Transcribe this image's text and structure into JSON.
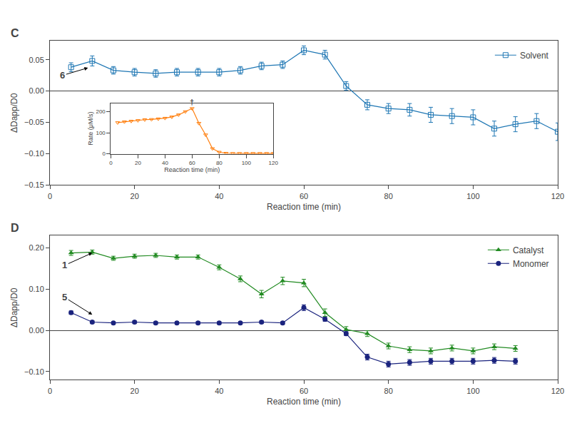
{
  "chart_data": [
    {
      "type": "line",
      "title": "C",
      "x_label": "Reaction time (min)",
      "y_label": "ΔDapp/D0",
      "xlim": [
        0,
        120
      ],
      "ylim": [
        -0.15,
        0.08
      ],
      "xticks": [
        0,
        20,
        40,
        60,
        80,
        100,
        120
      ],
      "yticks": [
        {
          "value": -0.15,
          "label": "−0.15"
        },
        {
          "value": -0.1,
          "label": "−0.10"
        },
        {
          "value": -0.05,
          "label": "−0.05"
        },
        {
          "value": 0.0,
          "label": "0.00"
        },
        {
          "value": 0.05,
          "label": "0.05"
        }
      ],
      "grid": false,
      "legend": "upper right",
      "x": [
        5,
        10,
        15,
        20,
        25,
        30,
        35,
        40,
        45,
        50,
        55,
        60,
        65,
        70,
        75,
        80,
        85,
        90,
        95,
        100,
        105,
        110,
        115,
        120
      ],
      "series": [
        {
          "name": "Solvent",
          "marker": "square",
          "values": [
            0.038,
            0.048,
            0.033,
            0.03,
            0.028,
            0.03,
            0.03,
            0.03,
            0.033,
            0.04,
            0.042,
            0.065,
            0.058,
            0.008,
            -0.022,
            -0.028,
            -0.03,
            -0.038,
            -0.04,
            -0.042,
            -0.06,
            -0.053,
            -0.048,
            -0.065
          ],
          "errors": [
            0.007,
            0.008,
            0.006,
            0.006,
            0.006,
            0.006,
            0.006,
            0.006,
            0.006,
            0.006,
            0.006,
            0.007,
            0.007,
            0.007,
            0.008,
            0.008,
            0.01,
            0.012,
            0.012,
            0.012,
            0.012,
            0.012,
            0.012,
            0.014
          ]
        }
      ],
      "annotations": [
        {
          "text": "6",
          "xy": [
            9,
            0.037
          ],
          "xytext": [
            3,
            0.025
          ]
        }
      ]
    },
    {
      "type": "line",
      "x_label": "Reaction time (min)",
      "y_label": "Rate (μM/s)",
      "xlim": [
        0,
        120
      ],
      "ylim": [
        0,
        240
      ],
      "xticks": [
        0,
        20,
        40,
        60,
        80,
        100,
        120
      ],
      "yticks": [
        0,
        100,
        200
      ],
      "grid": false,
      "x": [
        5,
        10,
        15,
        20,
        25,
        30,
        35,
        40,
        45,
        50,
        55,
        60,
        65,
        70,
        75,
        80,
        85,
        90,
        95,
        100,
        105,
        110,
        115,
        120
      ],
      "series": [
        {
          "marker": "triangle-down",
          "values": [
            148,
            152,
            155,
            158,
            162,
            163,
            166,
            169,
            175,
            185,
            200,
            215,
            145,
            90,
            25,
            8,
            3,
            2,
            2,
            2,
            2,
            2,
            2,
            2
          ]
        }
      ],
      "annotations": [
        {
          "text": "†",
          "xy": [
            60,
            218
          ]
        }
      ]
    },
    {
      "type": "line",
      "title": "D",
      "x_label": "Reaction time (min)",
      "y_label": "ΔDapp/D0",
      "xlim": [
        0,
        120
      ],
      "ylim": [
        -0.12,
        0.23
      ],
      "xticks": [
        0,
        20,
        40,
        60,
        80,
        100,
        120
      ],
      "yticks": [
        {
          "value": -0.1,
          "label": "−0.10"
        },
        {
          "value": 0.0,
          "label": "0.00"
        },
        {
          "value": 0.1,
          "label": "0.10"
        },
        {
          "value": 0.2,
          "label": "0.20"
        }
      ],
      "grid": false,
      "legend": "upper right",
      "x": [
        5,
        10,
        15,
        20,
        25,
        30,
        35,
        40,
        45,
        50,
        55,
        60,
        65,
        70,
        75,
        80,
        85,
        90,
        95,
        100,
        105,
        110
      ],
      "series": [
        {
          "name": "Catalyst",
          "color": "#228B22",
          "marker": "triangle-up",
          "values": [
            0.188,
            0.19,
            0.175,
            0.18,
            0.182,
            0.178,
            0.178,
            0.153,
            0.125,
            0.088,
            0.12,
            0.115,
            0.043,
            0.002,
            -0.008,
            -0.038,
            -0.047,
            -0.05,
            -0.043,
            -0.05,
            -0.04,
            -0.044
          ],
          "errors": [
            0.006,
            0.005,
            0.005,
            0.005,
            0.005,
            0.005,
            0.005,
            0.006,
            0.007,
            0.009,
            0.009,
            0.009,
            0.009,
            0.007,
            0.007,
            0.007,
            0.007,
            0.007,
            0.007,
            0.007,
            0.007,
            0.007
          ]
        },
        {
          "name": "Monomer",
          "color": "#1a237e",
          "marker": "circle",
          "values": [
            0.043,
            0.02,
            0.018,
            0.02,
            0.018,
            0.018,
            0.018,
            0.018,
            0.018,
            0.02,
            0.018,
            0.055,
            0.027,
            -0.008,
            -0.065,
            -0.082,
            -0.078,
            -0.075,
            -0.075,
            -0.075,
            -0.073,
            -0.075
          ],
          "errors": [
            0.004,
            0.003,
            0.003,
            0.003,
            0.003,
            0.003,
            0.003,
            0.003,
            0.003,
            0.003,
            0.003,
            0.007,
            0.005,
            0.005,
            0.007,
            0.007,
            0.007,
            0.007,
            0.007,
            0.007,
            0.007,
            0.007
          ]
        }
      ],
      "annotations": [
        {
          "text": "1",
          "xy": [
            10,
            0.188
          ],
          "xytext": [
            3.5,
            0.158
          ]
        },
        {
          "text": "5",
          "xy": [
            10,
            0.038
          ],
          "xytext": [
            3.5,
            0.08
          ]
        }
      ]
    }
  ]
}
